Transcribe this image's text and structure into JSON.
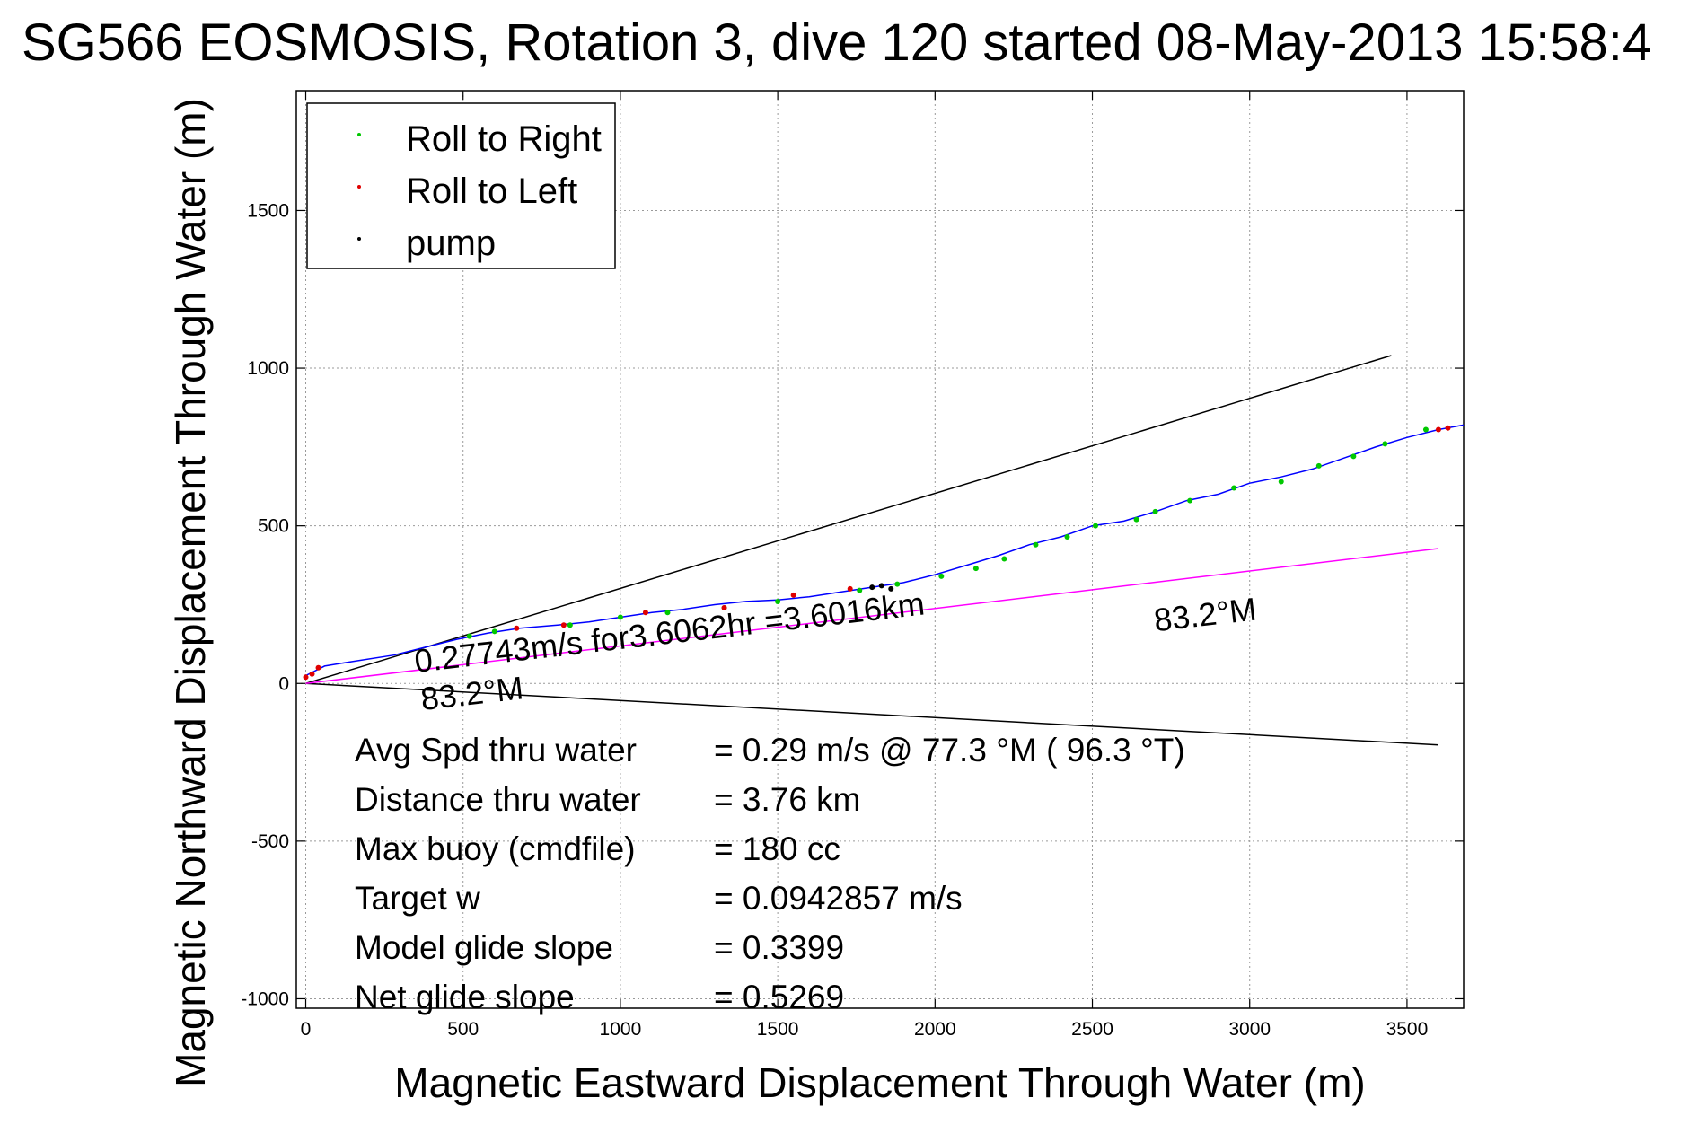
{
  "chart_data": {
    "type": "line",
    "title": "SG566 EOSMOSIS, Rotation 3, dive 120 started 08-May-2013 15:58:4",
    "xlabel": "Magnetic Eastward Displacement Through Water (m)",
    "ylabel": "Magnetic Northward Displacement Through Water (m)",
    "xlim": [
      -30,
      3680
    ],
    "ylim": [
      -1030,
      1880
    ],
    "xticks": [
      0,
      500,
      1000,
      1500,
      2000,
      2500,
      3000,
      3500
    ],
    "yticks": [
      -1000,
      -500,
      0,
      500,
      1000,
      1500
    ],
    "grid": true,
    "legend_position": "top-left",
    "legend": [
      {
        "label": "Roll to Right",
        "color": "#00c800"
      },
      {
        "label": "Roll to Left",
        "color": "#e00000"
      },
      {
        "label": "pump",
        "color": "#000000"
      }
    ],
    "track": {
      "color": "#0000ff",
      "x": [
        0,
        60,
        150,
        280,
        380,
        480,
        580,
        680,
        800,
        900,
        1000,
        1100,
        1200,
        1300,
        1400,
        1500,
        1600,
        1700,
        1800,
        1900,
        2000,
        2100,
        2200,
        2300,
        2400,
        2500,
        2600,
        2700,
        2800,
        2900,
        3000,
        3100,
        3200,
        3300,
        3400,
        3500,
        3600,
        3680
      ],
      "y": [
        25,
        55,
        70,
        90,
        115,
        140,
        160,
        175,
        185,
        195,
        210,
        225,
        235,
        250,
        260,
        265,
        275,
        290,
        305,
        320,
        345,
        375,
        405,
        440,
        465,
        500,
        515,
        545,
        580,
        600,
        635,
        655,
        680,
        715,
        750,
        780,
        805,
        820
      ]
    },
    "roll_right_points": {
      "x": [
        520,
        600,
        840,
        1000,
        1150,
        1330,
        1500,
        1760,
        1880,
        2020,
        2130,
        2220,
        2320,
        2420,
        2510,
        2640,
        2700,
        2810,
        2950,
        3100,
        3220,
        3330,
        3430,
        3560
      ],
      "y": [
        150,
        165,
        185,
        210,
        225,
        240,
        260,
        295,
        315,
        340,
        365,
        395,
        440,
        465,
        500,
        520,
        545,
        580,
        620,
        640,
        690,
        720,
        760,
        805
      ]
    },
    "roll_left_points": {
      "x": [
        0,
        20,
        40,
        670,
        820,
        1080,
        1330,
        1550,
        1730,
        3600,
        3630
      ],
      "y": [
        20,
        30,
        50,
        175,
        185,
        225,
        240,
        280,
        300,
        805,
        810
      ]
    },
    "pump_points": {
      "x": [
        1800,
        1830,
        1860
      ],
      "y": [
        305,
        310,
        300
      ]
    },
    "reference_lines": [
      {
        "name": "upper",
        "color": "#000000",
        "x": [
          0,
          3450
        ],
        "y": [
          0,
          1040
        ]
      },
      {
        "name": "lower",
        "color": "#000000",
        "x": [
          0,
          3600
        ],
        "y": [
          0,
          -195
        ]
      },
      {
        "name": "heading",
        "color": "#ff00ff",
        "x": [
          0,
          3600
        ],
        "y": [
          0,
          428
        ]
      }
    ],
    "annotations": [
      {
        "text": "0.27743m/s for3.6062hr =3.6016km",
        "x": 350,
        "y": 35,
        "rotation": -6.5
      },
      {
        "text": "83.2°M",
        "x": 370,
        "y": -85,
        "rotation": -6.5
      },
      {
        "text": "83.2°M",
        "x": 2700,
        "y": 165,
        "rotation": -6.5
      }
    ],
    "stats": [
      {
        "label": "Avg Spd thru water",
        "value": "=  0.29 m/s @  77.3 °M ( 96.3 °T)"
      },
      {
        "label": "Distance thru water",
        "value": "=  3.76 km"
      },
      {
        "label": "Max buoy (cmdfile)",
        "value": "= 180 cc"
      },
      {
        "label": "Target w",
        "value": "= 0.0942857 m/s"
      },
      {
        "label": "Model glide slope",
        "value": "= 0.3399"
      },
      {
        "label": "Net glide slope",
        "value": "= 0.5269"
      }
    ]
  }
}
